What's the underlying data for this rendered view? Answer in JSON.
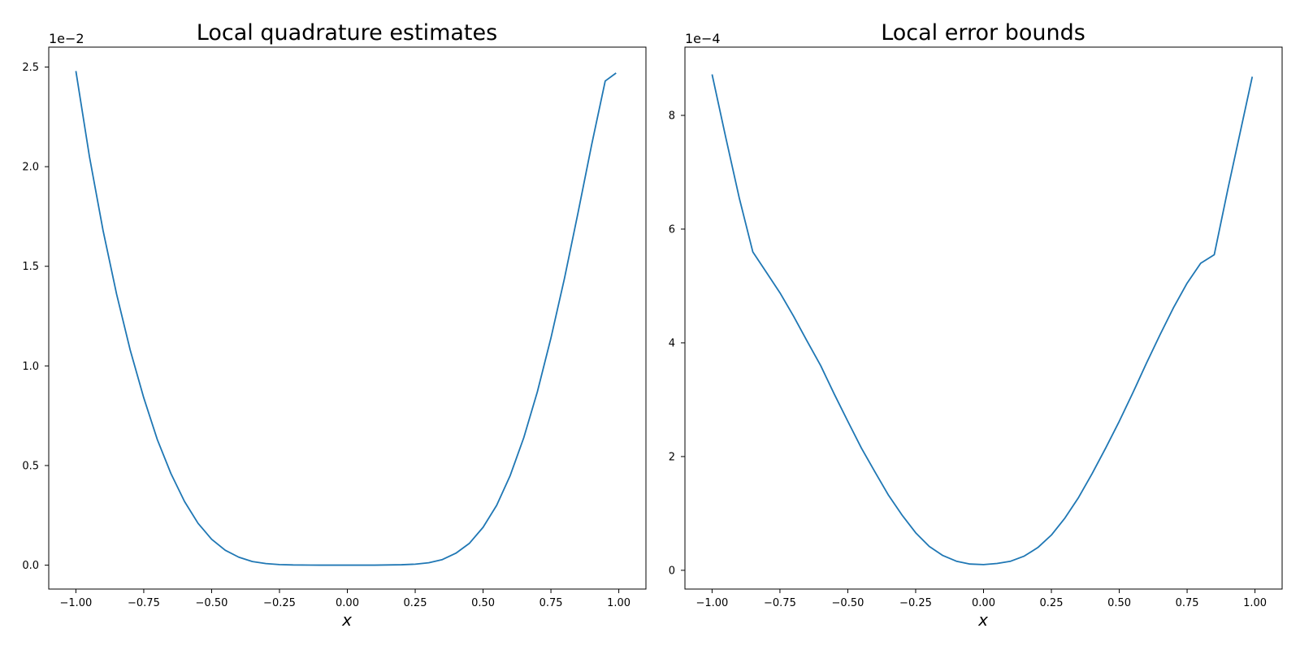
{
  "chart_data": [
    {
      "type": "line",
      "title": "Local quadrature estimates",
      "xlabel": "x",
      "ylabel": "",
      "y_offset_label": "1e−2",
      "xlim": [
        -1.1,
        1.1
      ],
      "ylim": [
        -0.12,
        2.6
      ],
      "xticks": [
        -1.0,
        -0.75,
        -0.5,
        -0.25,
        0.0,
        0.25,
        0.5,
        0.75,
        1.0
      ],
      "xtick_labels": [
        "−1.00",
        "−0.75",
        "−0.50",
        "−0.25",
        "0.00",
        "0.25",
        "0.50",
        "0.75",
        "1.00"
      ],
      "yticks": [
        0.0,
        0.5,
        1.0,
        1.5,
        2.0,
        2.5
      ],
      "ytick_labels": [
        "0.0",
        "0.5",
        "1.0",
        "1.5",
        "2.0",
        "2.5"
      ],
      "grid": false,
      "color": "#1f77b4",
      "series": [
        {
          "x": [
            -1.0,
            -0.95,
            -0.9,
            -0.85,
            -0.8,
            -0.75,
            -0.7,
            -0.65,
            -0.6,
            -0.55,
            -0.5,
            -0.45,
            -0.4,
            -0.35,
            -0.3,
            -0.25,
            -0.2,
            -0.1,
            0.0,
            0.1,
            0.2,
            0.25,
            0.3,
            0.35,
            0.4,
            0.45,
            0.5,
            0.55,
            0.6,
            0.65,
            0.7,
            0.75,
            0.8,
            0.85,
            0.9,
            0.95,
            0.99
          ],
          "y": [
            2.48,
            2.05,
            1.68,
            1.36,
            1.08,
            0.84,
            0.63,
            0.46,
            0.32,
            0.21,
            0.13,
            0.075,
            0.04,
            0.018,
            0.008,
            0.003,
            0.001,
            0.0,
            0.0,
            0.0,
            0.002,
            0.005,
            0.012,
            0.028,
            0.06,
            0.11,
            0.19,
            0.3,
            0.45,
            0.64,
            0.87,
            1.14,
            1.44,
            1.77,
            2.11,
            2.43,
            2.47
          ]
        }
      ]
    },
    {
      "type": "line",
      "title": "Local error bounds",
      "xlabel": "x",
      "ylabel": "",
      "y_offset_label": "1e−4",
      "xlim": [
        -1.1,
        1.1
      ],
      "ylim": [
        -0.33,
        9.2
      ],
      "xticks": [
        -1.0,
        -0.75,
        -0.5,
        -0.25,
        0.0,
        0.25,
        0.5,
        0.75,
        1.0
      ],
      "xtick_labels": [
        "−1.00",
        "−0.75",
        "−0.50",
        "−0.25",
        "0.00",
        "0.25",
        "0.50",
        "0.75",
        "1.00"
      ],
      "yticks": [
        0,
        2,
        4,
        6,
        8
      ],
      "ytick_labels": [
        "0",
        "2",
        "4",
        "6",
        "8"
      ],
      "grid": false,
      "color": "#1f77b4",
      "series": [
        {
          "x": [
            -1.0,
            -0.95,
            -0.9,
            -0.85,
            -0.8,
            -0.75,
            -0.7,
            -0.65,
            -0.6,
            -0.55,
            -0.5,
            -0.45,
            -0.4,
            -0.35,
            -0.3,
            -0.25,
            -0.2,
            -0.15,
            -0.1,
            -0.05,
            0.0,
            0.05,
            0.1,
            0.15,
            0.2,
            0.25,
            0.3,
            0.35,
            0.4,
            0.45,
            0.5,
            0.55,
            0.6,
            0.65,
            0.7,
            0.75,
            0.8,
            0.85,
            0.9,
            0.95,
            0.99
          ],
          "y": [
            8.72,
            7.62,
            6.55,
            5.6,
            5.24,
            4.88,
            4.47,
            4.03,
            3.6,
            3.1,
            2.62,
            2.15,
            1.73,
            1.32,
            0.97,
            0.66,
            0.42,
            0.26,
            0.16,
            0.11,
            0.1,
            0.12,
            0.16,
            0.25,
            0.4,
            0.62,
            0.92,
            1.28,
            1.7,
            2.15,
            2.62,
            3.12,
            3.64,
            4.14,
            4.62,
            5.05,
            5.4,
            5.55,
            6.7,
            7.8,
            8.68
          ]
        }
      ]
    }
  ]
}
